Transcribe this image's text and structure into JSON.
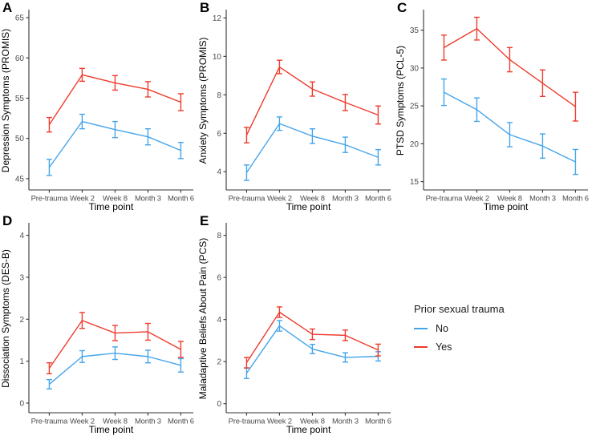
{
  "colors": {
    "no": "#45A5EA",
    "yes": "#EF3B2C",
    "axis": "#333333",
    "tick_text": "#4D4D4D",
    "title_text": "#000000"
  },
  "legend": {
    "title": "Prior sexual trauma",
    "items": [
      {
        "label": "No",
        "key": "no"
      },
      {
        "label": "Yes",
        "key": "yes"
      }
    ]
  },
  "chart_data": [
    {
      "type": "line",
      "letter": "A",
      "ylabel": "Depression Symptoms (PROMIS)",
      "xlabel": "Time point",
      "categories": [
        "Pre-trauma",
        "Week 2",
        "Week 8",
        "Month 3",
        "Month 6"
      ],
      "yticks": [
        45,
        50,
        55,
        60,
        65
      ],
      "ylim": [
        43.6,
        65.8
      ],
      "grid": false,
      "series": [
        {
          "name": "No",
          "color_key": "no",
          "values": [
            46.4,
            52.1,
            51.1,
            50.2,
            48.5
          ],
          "err": [
            1.0,
            0.9,
            1.0,
            1.0,
            1.0
          ]
        },
        {
          "name": "Yes",
          "color_key": "yes",
          "values": [
            51.7,
            57.9,
            56.9,
            56.1,
            54.5
          ],
          "err": [
            0.9,
            0.8,
            0.9,
            0.95,
            1.05
          ]
        }
      ]
    },
    {
      "type": "line",
      "letter": "B",
      "ylabel": "Anxiety Symptoms (PROMIS)",
      "xlabel": "Time point",
      "categories": [
        "Pre-trauma",
        "Week 2",
        "Week 8",
        "Month 3",
        "Month 6"
      ],
      "yticks": [
        4,
        6,
        8,
        10,
        12
      ],
      "ylim": [
        3.05,
        12.35
      ],
      "grid": false,
      "series": [
        {
          "name": "No",
          "color_key": "no",
          "values": [
            3.95,
            6.5,
            5.85,
            5.4,
            4.75
          ],
          "err": [
            0.4,
            0.35,
            0.38,
            0.4,
            0.4
          ]
        },
        {
          "name": "Yes",
          "color_key": "yes",
          "values": [
            5.9,
            9.45,
            8.3,
            7.6,
            6.95
          ],
          "err": [
            0.4,
            0.35,
            0.37,
            0.42,
            0.47
          ]
        }
      ]
    },
    {
      "type": "line",
      "letter": "C",
      "ylabel": "PTSD Symptoms (PCL-5)",
      "xlabel": "Time point",
      "categories": [
        "Pre-trauma",
        "Week 2",
        "Week 8",
        "Month 3",
        "Month 6"
      ],
      "yticks": [
        15,
        20,
        25,
        30,
        35
      ],
      "ylim": [
        13.9,
        37.5
      ],
      "grid": false,
      "series": [
        {
          "name": "No",
          "color_key": "no",
          "values": [
            26.8,
            24.5,
            21.2,
            19.7,
            17.6
          ],
          "err": [
            1.75,
            1.55,
            1.6,
            1.6,
            1.65
          ]
        },
        {
          "name": "Yes",
          "color_key": "yes",
          "values": [
            32.7,
            35.2,
            31.1,
            28.0,
            24.9
          ],
          "err": [
            1.65,
            1.5,
            1.6,
            1.75,
            1.9
          ]
        }
      ]
    },
    {
      "type": "line",
      "letter": "D",
      "ylabel": "Dissociation Symptoms (DES-B)",
      "xlabel": "Time point",
      "categories": [
        "Pre-trauma",
        "Week 2",
        "Week 8",
        "Month 3",
        "Month 6"
      ],
      "yticks": [
        0,
        1,
        2,
        3,
        4
      ],
      "ylim": [
        -0.23,
        4.26
      ],
      "grid": false,
      "series": [
        {
          "name": "No",
          "color_key": "no",
          "values": [
            0.45,
            1.11,
            1.19,
            1.11,
            0.9
          ],
          "err": [
            0.11,
            0.14,
            0.15,
            0.15,
            0.16
          ]
        },
        {
          "name": "Yes",
          "color_key": "yes",
          "values": [
            0.83,
            1.97,
            1.67,
            1.7,
            1.28
          ],
          "err": [
            0.13,
            0.19,
            0.18,
            0.2,
            0.19
          ]
        }
      ]
    },
    {
      "type": "line",
      "letter": "E",
      "ylabel": "Maladaptive Beliefs About Pain (PCS)",
      "xlabel": "Time point",
      "categories": [
        "Pre-trauma",
        "Week 2",
        "Week 8",
        "Month 3",
        "Month 6"
      ],
      "yticks": [
        0,
        2,
        4,
        6,
        8
      ],
      "ylim": [
        -0.43,
        8.52
      ],
      "grid": false,
      "series": [
        {
          "name": "No",
          "color_key": "no",
          "values": [
            1.45,
            3.7,
            2.6,
            2.2,
            2.25
          ],
          "err": [
            0.25,
            0.25,
            0.22,
            0.22,
            0.22
          ]
        },
        {
          "name": "Yes",
          "color_key": "yes",
          "values": [
            1.95,
            4.35,
            3.3,
            3.25,
            2.55
          ],
          "err": [
            0.25,
            0.25,
            0.25,
            0.25,
            0.28
          ]
        }
      ]
    }
  ]
}
